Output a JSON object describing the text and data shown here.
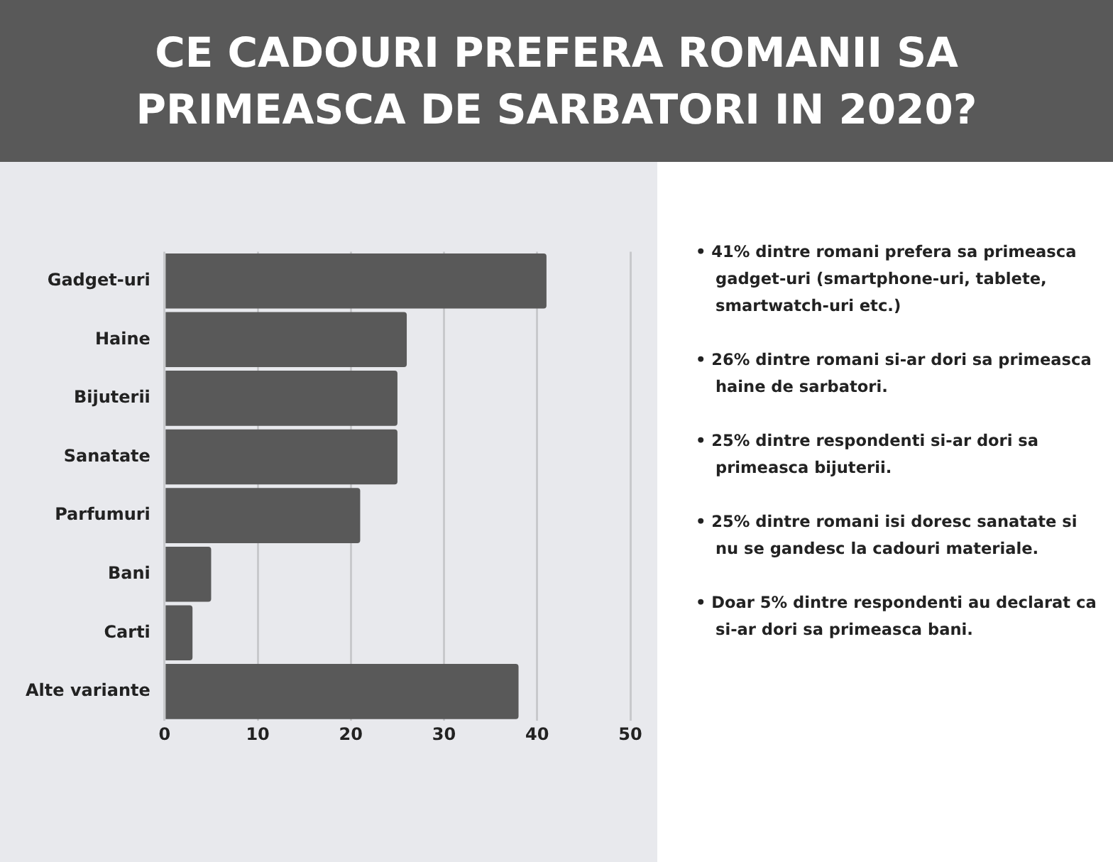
{
  "chart_data": {
    "type": "bar",
    "orientation": "horizontal",
    "title": "CE CADOURI PREFERA ROMANII SA PRIMEASCA DE SARBATORI IN 2020?",
    "categories": [
      "Gadget-uri",
      "Haine",
      "Bijuterii",
      "Sanatate",
      "Parfumuri",
      "Bani",
      "Carti",
      "Alte variante"
    ],
    "values": [
      41,
      26,
      25,
      25,
      21,
      5,
      3,
      38
    ],
    "color": "#595959",
    "xlim": [
      0,
      50
    ],
    "xticks": [
      0,
      10,
      20,
      30,
      40,
      50
    ],
    "grid": "x",
    "legend": false,
    "annotations": [
      "• 41% dintre romani prefera sa primeasca gadget-uri (smartphone-uri, tablete, smartwatch-uri etc.)",
      "• 26% dintre romani si-ar dori sa primeasca haine de sarbatori.",
      "• 25% dintre respondenti si-ar dori sa primeasca bijuterii.",
      "• 25% dintre romani isi doresc sanatate si nu se gandesc la cadouri materiale.",
      "• Doar 5% dintre respondenti au declarat ca si-ar dori sa primeasca bani."
    ]
  }
}
